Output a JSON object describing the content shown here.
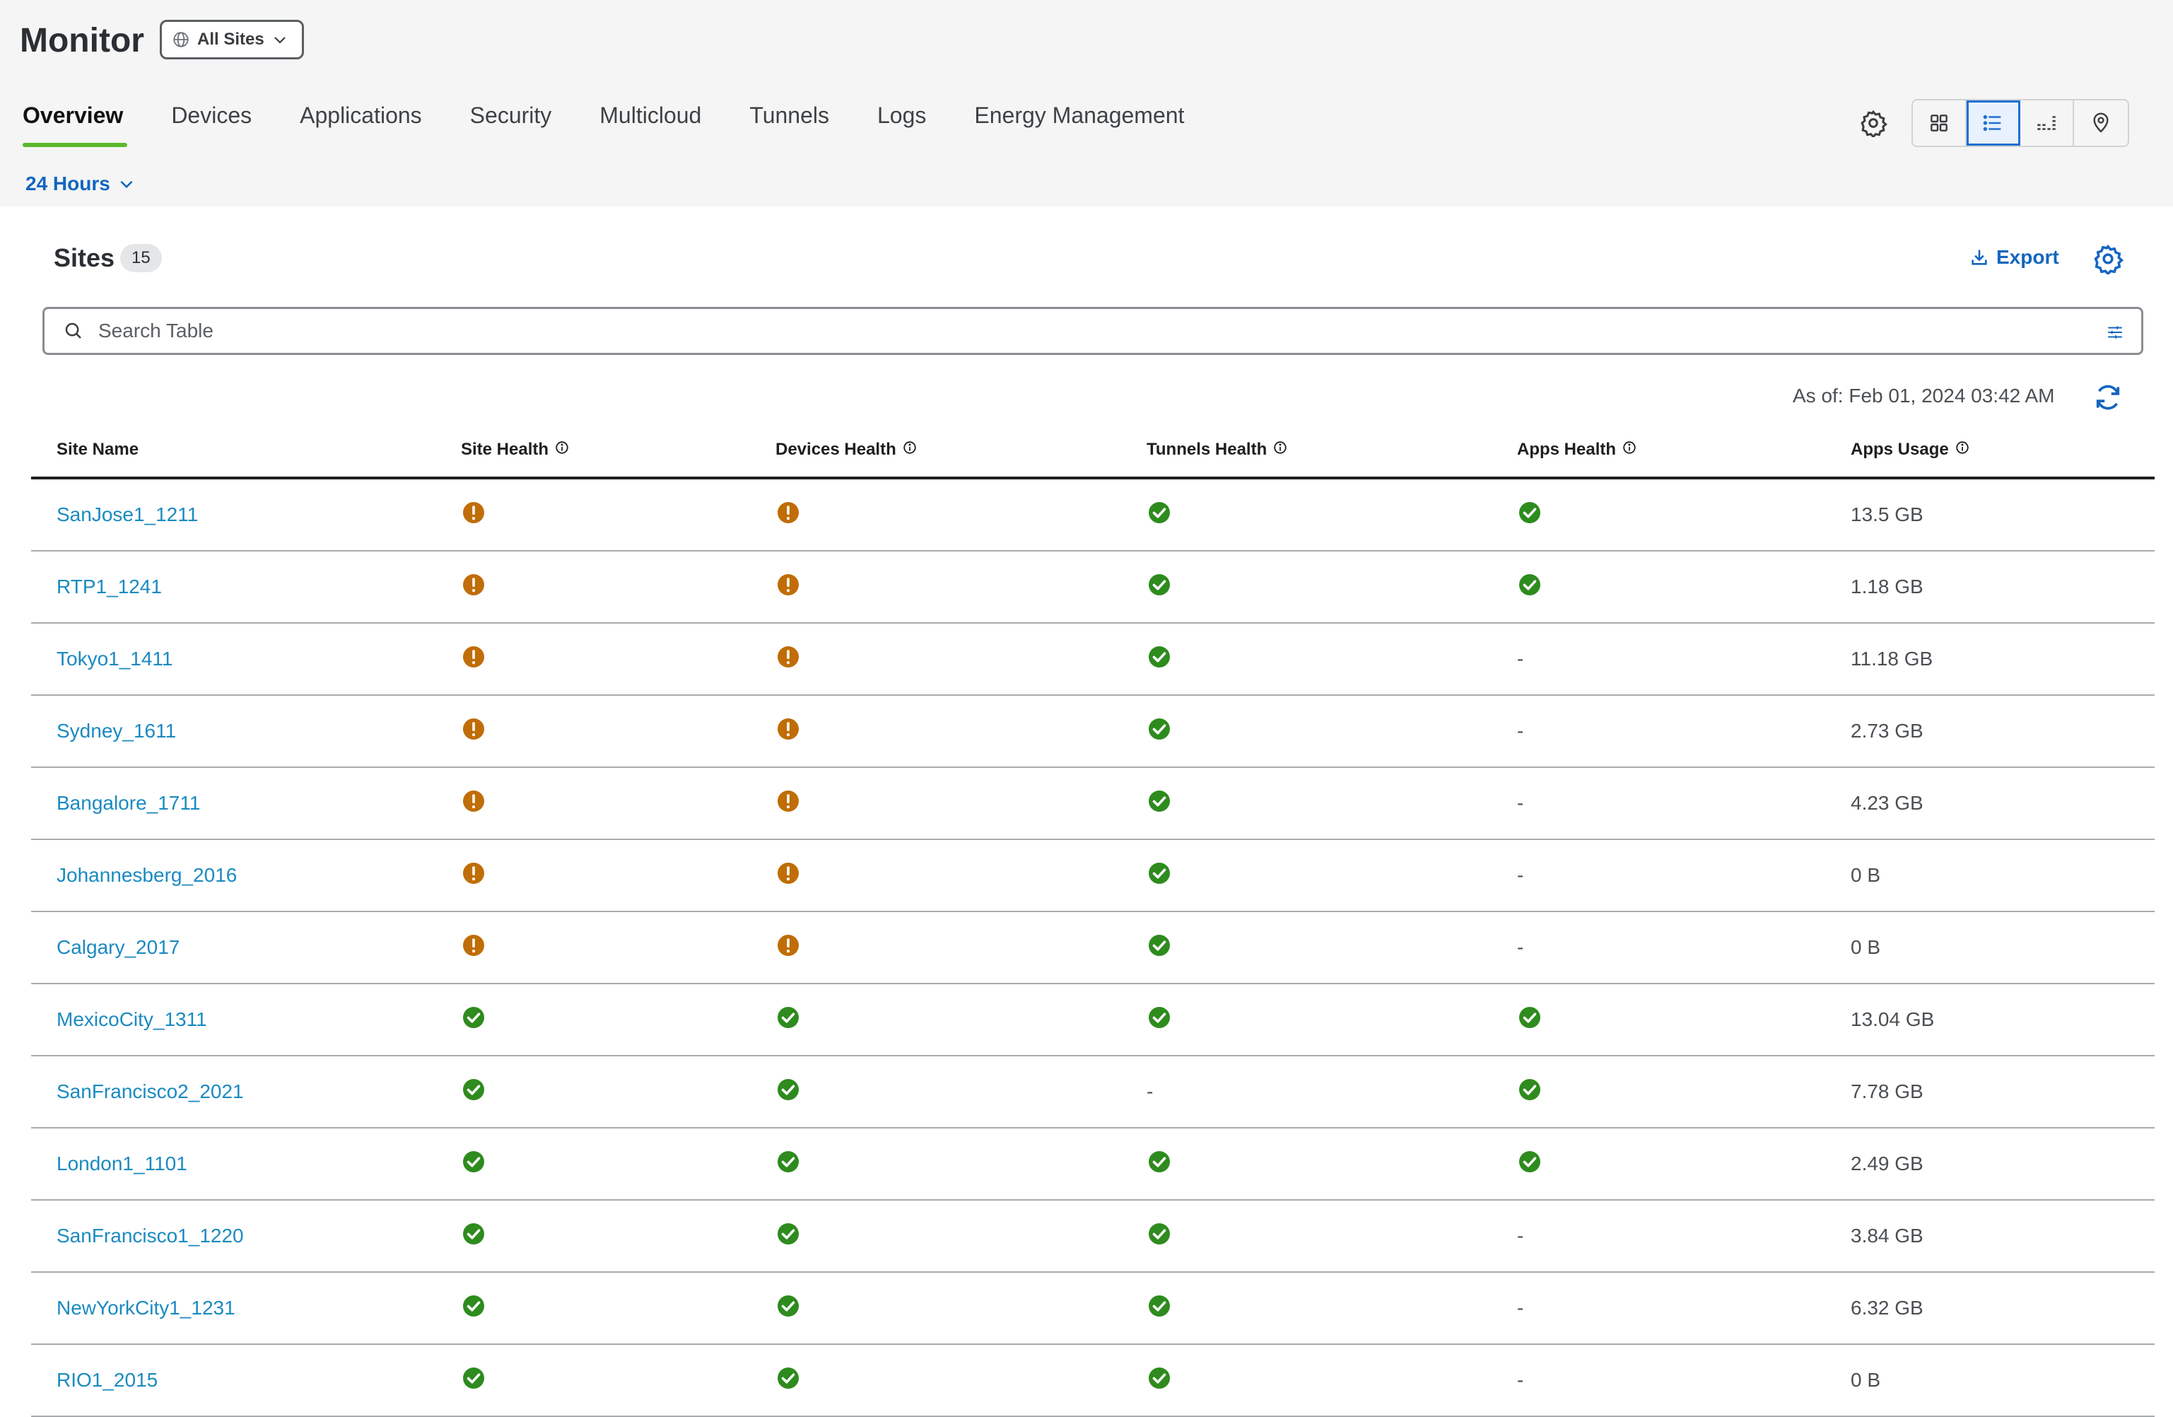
{
  "header": {
    "title": "Monitor",
    "site_selector": "All Sites",
    "tabs": [
      {
        "label": "Overview"
      },
      {
        "label": "Devices"
      },
      {
        "label": "Applications"
      },
      {
        "label": "Security"
      },
      {
        "label": "Multicloud"
      },
      {
        "label": "Tunnels"
      },
      {
        "label": "Logs"
      },
      {
        "label": "Energy Management"
      }
    ],
    "active_tab": "Overview",
    "time_range": "24 Hours",
    "view_modes": [
      "tile-grid",
      "list",
      "bar-list",
      "map"
    ],
    "active_view": "list"
  },
  "card": {
    "title": "Sites",
    "count": "15",
    "export_label": "Export",
    "search_placeholder": "Search Table",
    "as_of": "As of: Feb 01, 2024 03:42 AM"
  },
  "table": {
    "columns": [
      "Site Name",
      "Site Health",
      "Devices Health",
      "Tunnels Health",
      "Apps Health",
      "Apps Usage"
    ],
    "rows": [
      {
        "site": "SanJose1_1211",
        "site_health": "warning",
        "devices_health": "warning",
        "tunnels_health": "good",
        "apps_health": "good",
        "usage": "13.5 GB"
      },
      {
        "site": "RTP1_1241",
        "site_health": "warning",
        "devices_health": "warning",
        "tunnels_health": "good",
        "apps_health": "good",
        "usage": "1.18 GB"
      },
      {
        "site": "Tokyo1_1411",
        "site_health": "warning",
        "devices_health": "warning",
        "tunnels_health": "good",
        "apps_health": "none",
        "usage": "11.18 GB"
      },
      {
        "site": "Sydney_1611",
        "site_health": "warning",
        "devices_health": "warning",
        "tunnels_health": "good",
        "apps_health": "none",
        "usage": "2.73 GB"
      },
      {
        "site": "Bangalore_1711",
        "site_health": "warning",
        "devices_health": "warning",
        "tunnels_health": "good",
        "apps_health": "none",
        "usage": "4.23 GB"
      },
      {
        "site": "Johannesberg_2016",
        "site_health": "warning",
        "devices_health": "warning",
        "tunnels_health": "good",
        "apps_health": "none",
        "usage": "0 B"
      },
      {
        "site": "Calgary_2017",
        "site_health": "warning",
        "devices_health": "warning",
        "tunnels_health": "good",
        "apps_health": "none",
        "usage": "0 B"
      },
      {
        "site": "MexicoCity_1311",
        "site_health": "good",
        "devices_health": "good",
        "tunnels_health": "good",
        "apps_health": "good",
        "usage": "13.04 GB"
      },
      {
        "site": "SanFrancisco2_2021",
        "site_health": "good",
        "devices_health": "good",
        "tunnels_health": "none",
        "apps_health": "good",
        "usage": "7.78 GB"
      },
      {
        "site": "London1_1101",
        "site_health": "good",
        "devices_health": "good",
        "tunnels_health": "good",
        "apps_health": "good",
        "usage": "2.49 GB"
      },
      {
        "site": "SanFrancisco1_1220",
        "site_health": "good",
        "devices_health": "good",
        "tunnels_health": "good",
        "apps_health": "none",
        "usage": "3.84 GB"
      },
      {
        "site": "NewYorkCity1_1231",
        "site_health": "good",
        "devices_health": "good",
        "tunnels_health": "good",
        "apps_health": "none",
        "usage": "6.32 GB"
      },
      {
        "site": "RIO1_2015",
        "site_health": "good",
        "devices_health": "good",
        "tunnels_health": "good",
        "apps_health": "none",
        "usage": "0 B"
      }
    ],
    "none_symbol": "-"
  },
  "colors": {
    "accent_blue": "#1465c0",
    "link_blue": "#1b8ac0",
    "warning_orange": "#c06d06",
    "good_green": "#2e8b1e",
    "tab_underline_green": "#5bb82e"
  }
}
